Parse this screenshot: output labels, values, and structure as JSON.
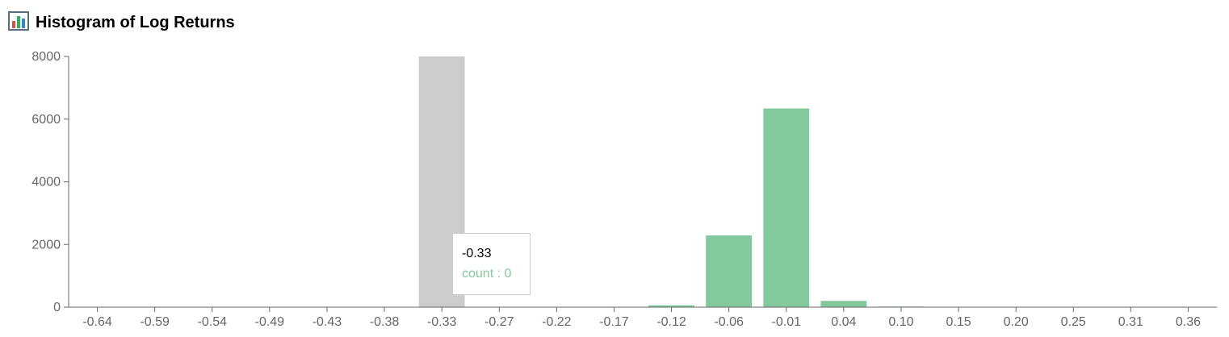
{
  "header": {
    "title": "Histogram of Log Returns",
    "icon": "bar-chart-icon"
  },
  "tooltip": {
    "label": "-0.33",
    "item": "count : 0"
  },
  "colors": {
    "bar": "#82ca9d",
    "cursor": "#cccccc",
    "axis": "#666666"
  },
  "chart_data": {
    "type": "bar",
    "title": "Histogram of Log Returns",
    "xlabel": "",
    "ylabel": "",
    "ylim": [
      0,
      8000
    ],
    "yticks": [
      0,
      2000,
      4000,
      6000,
      8000
    ],
    "grid": false,
    "legend": "none",
    "active_category": "-0.33",
    "categories": [
      "-0.64",
      "-0.59",
      "-0.54",
      "-0.49",
      "-0.43",
      "-0.38",
      "-0.33",
      "-0.27",
      "-0.22",
      "-0.17",
      "-0.12",
      "-0.06",
      "-0.01",
      "0.04",
      "0.10",
      "0.15",
      "0.20",
      "0.25",
      "0.31",
      "0.36"
    ],
    "series": [
      {
        "name": "count",
        "values": [
          1,
          0,
          0,
          1,
          0,
          0,
          0,
          0,
          2,
          8,
          60,
          2290,
          6340,
          200,
          20,
          1,
          0,
          0,
          0,
          1
        ]
      }
    ]
  }
}
